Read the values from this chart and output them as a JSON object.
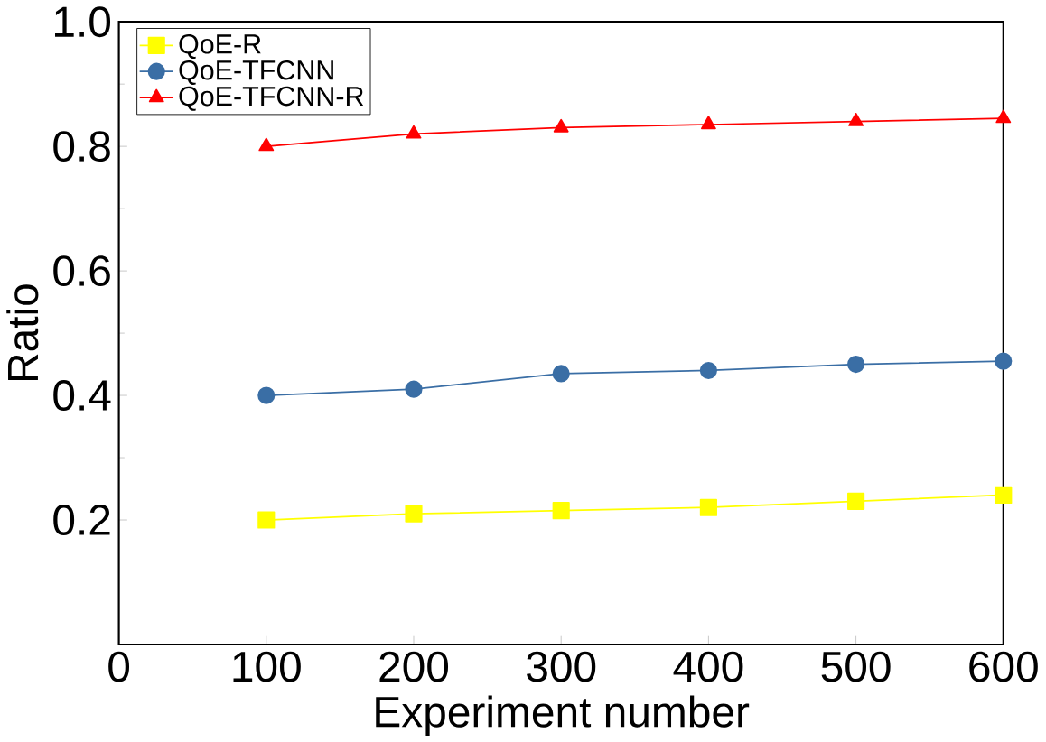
{
  "chart_data": {
    "type": "line",
    "xlabel": "Experiment number",
    "ylabel": "Ratio",
    "x": [
      100,
      200,
      300,
      400,
      500,
      600
    ],
    "series": [
      {
        "name": "QoE-R",
        "color": "#ffff00",
        "marker": "square",
        "values": [
          0.2,
          0.21,
          0.215,
          0.22,
          0.23,
          0.24
        ]
      },
      {
        "name": "QoE-TFCNN",
        "color": "#3a6ea5",
        "marker": "circle",
        "values": [
          0.4,
          0.41,
          0.435,
          0.44,
          0.45,
          0.455
        ]
      },
      {
        "name": "QoE-TFCNN-R",
        "color": "#ff0000",
        "marker": "triangle",
        "values": [
          0.8,
          0.82,
          0.83,
          0.835,
          0.84,
          0.845
        ]
      }
    ],
    "xlim": [
      0,
      600
    ],
    "xticks": [
      0,
      100,
      200,
      300,
      400,
      500,
      600
    ],
    "ylim": [
      0,
      1.0
    ],
    "yticks": [
      0.2,
      0.4,
      0.6,
      0.8,
      {
        "value": 1.0,
        "label": "1.0"
      }
    ],
    "grid": false,
    "legend": "top left",
    "line_style": "solid"
  }
}
